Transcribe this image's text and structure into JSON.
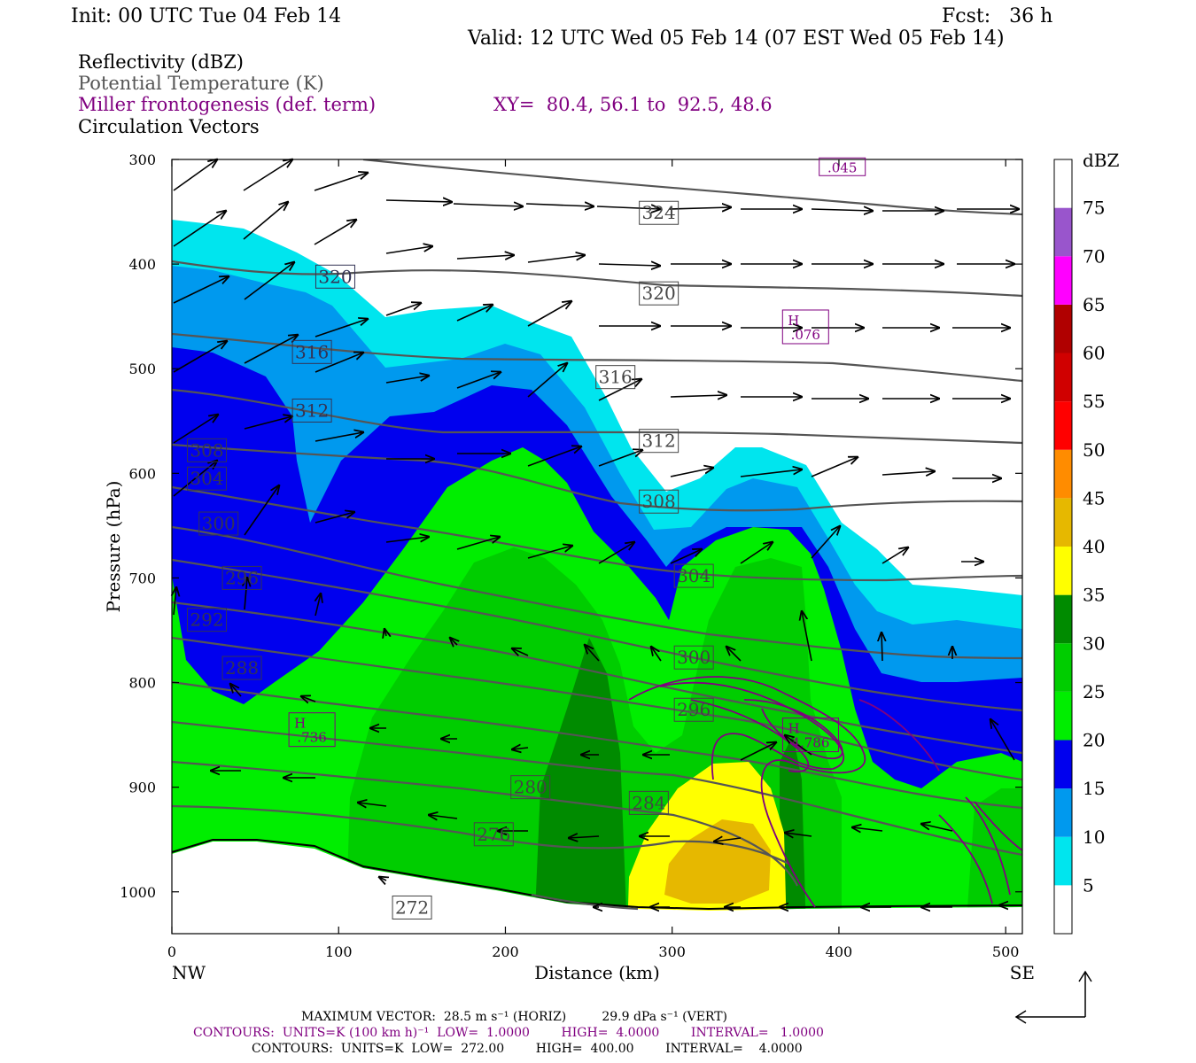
{
  "header": {
    "init": "Init: 00 UTC Tue 04 Feb 14",
    "fcst": "Fcst:   36 h",
    "valid": "Valid: 12 UTC Wed 05 Feb 14 (07 EST Wed 05 Feb 14)",
    "field1": "Reflectivity (dBZ)",
    "field2": "Potential Temperature (K)",
    "field3": "Miller frontogenesis (def. term)",
    "xy": "XY=  80.4, 56.1 to  92.5, 48.6",
    "field4": "Circulation Vectors"
  },
  "colors": {
    "purple": "#800080",
    "theta": "#555555",
    "dbz_bins": [
      "#ffffff",
      "#00e5ee",
      "#0099ee",
      "#0000ee",
      "#00ee00",
      "#00cd00",
      "#008b00",
      "#ffff00",
      "#e6b800",
      "#ff8c00",
      "#ff0000",
      "#d00000",
      "#b00000",
      "#ff00ff",
      "#9955cc",
      "#ffffff"
    ]
  },
  "footer": {
    "max_vector": "MAXIMUM VECTOR:  28.5 m s⁻¹ (HORIZ)         29.9 dPa s⁻¹ (VERT)",
    "contours1": "CONTOURS:  UNITS=K (100 km h)⁻¹  LOW=  1.0000        HIGH=  4.0000        INTERVAL=   1.0000",
    "contours2": "CONTOURS:  UNITS=K  LOW=  272.00        HIGH=  400.00        INTERVAL=    4.0000"
  },
  "chart_data": {
    "type": "heatmap",
    "xlabel": "Distance (km)",
    "ylabel": "Pressure (hPa)",
    "xlim": [
      0,
      510
    ],
    "ylim": [
      1040,
      300
    ],
    "x_ticks": [
      0,
      100,
      200,
      300,
      400,
      500
    ],
    "y_ticks": [
      300,
      400,
      500,
      600,
      700,
      800,
      900,
      1000
    ],
    "x_end_labels": {
      "left": "NW",
      "right": "SE"
    },
    "colorbar": {
      "unit": "dBZ",
      "labels": [
        "5",
        "10",
        "15",
        "20",
        "25",
        "30",
        "35",
        "40",
        "45",
        "50",
        "55",
        "60",
        "65",
        "70",
        "75"
      ]
    },
    "theta_contours": [
      {
        "value": "324",
        "x": 292,
        "p": 351
      },
      {
        "value": "320",
        "x": 292,
        "p": 428
      },
      {
        "value": "316",
        "x": 266,
        "p": 508
      },
      {
        "value": "312",
        "x": 292,
        "p": 569
      },
      {
        "value": "308",
        "x": 292,
        "p": 627
      },
      {
        "value": "304",
        "x": 313,
        "p": 698
      },
      {
        "value": "300",
        "x": 313,
        "p": 776
      },
      {
        "value": "296",
        "x": 313,
        "p": 826
      },
      {
        "value": "284",
        "x": 286,
        "p": 915
      },
      {
        "value": "280",
        "x": 215,
        "p": 900
      },
      {
        "value": "276",
        "x": 193,
        "p": 945
      },
      {
        "value": "272",
        "x": 144,
        "p": 1015
      }
    ],
    "theta_contours_left": [
      {
        "value": "320",
        "x": 98,
        "p": 412
      },
      {
        "value": "316",
        "x": 84,
        "p": 484
      },
      {
        "value": "312",
        "x": 84,
        "p": 540
      },
      {
        "value": "308",
        "x": 21,
        "p": 578
      },
      {
        "value": "304",
        "x": 21,
        "p": 605
      },
      {
        "value": "300",
        "x": 28,
        "p": 648
      },
      {
        "value": "296",
        "x": 42,
        "p": 700
      },
      {
        "value": "292",
        "x": 21,
        "p": 740
      },
      {
        "value": "288",
        "x": 42,
        "p": 786
      }
    ],
    "maxima": [
      {
        "label": "H",
        "value": ".076",
        "x": 380,
        "p": 460
      },
      {
        "label": "H",
        "value": "4.786",
        "x": 383,
        "p": 850
      },
      {
        "label": "H",
        "value": ".736",
        "x": 84,
        "p": 845
      },
      {
        "label": "",
        "value": ".045",
        "x": 402,
        "p": 307
      }
    ]
  }
}
